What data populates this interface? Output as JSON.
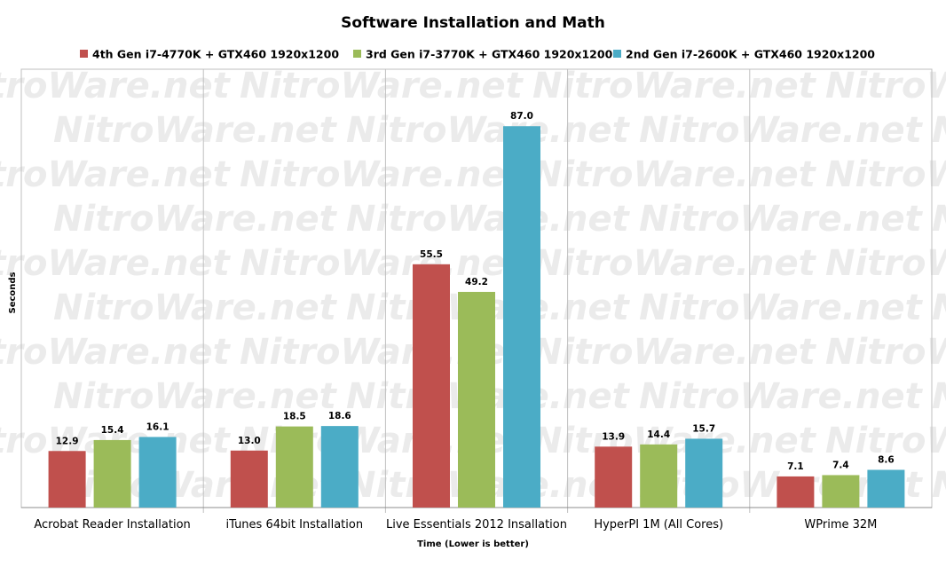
{
  "chart_data": {
    "type": "bar",
    "title": "Software Installation and Math",
    "xlabel": "Time (Lower is better)",
    "ylabel": "Seconds",
    "ylim": [
      0,
      100
    ],
    "grid": false,
    "legend_position": "top",
    "watermark": "NitroWare.net",
    "categories": [
      "Acrobat Reader Installation",
      "iTunes 64bit Installation",
      "Live Essentials 2012 Insallation",
      "HyperPI 1M (All Cores)",
      "WPrime 32M"
    ],
    "series": [
      {
        "name": "4th Gen i7-4770K + GTX460 1920x1200",
        "color": "#c0504d",
        "values": [
          12.9,
          13.0,
          55.5,
          13.9,
          7.1
        ]
      },
      {
        "name": "3rd Gen i7-3770K + GTX460 1920x1200",
        "color": "#9bbb59",
        "values": [
          15.4,
          18.5,
          49.2,
          14.4,
          7.4
        ]
      },
      {
        "name": "2nd Gen i7-2600K + GTX460 1920x1200",
        "color": "#4bacc6",
        "values": [
          16.1,
          18.6,
          87.0,
          15.7,
          8.6
        ]
      }
    ]
  }
}
